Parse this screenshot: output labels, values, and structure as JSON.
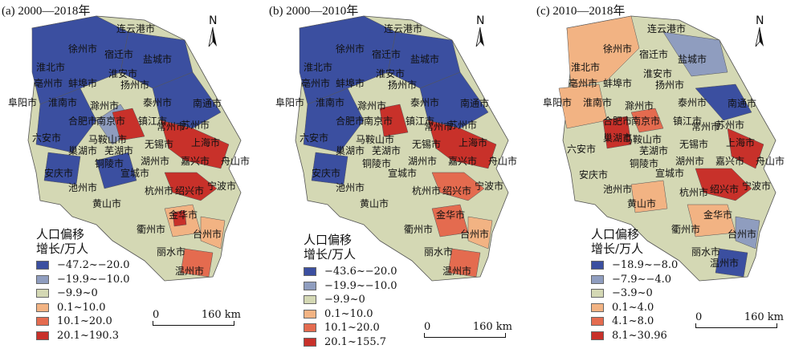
{
  "panels": [
    {
      "title": "(a) 2000—2018年",
      "legend_title_line1": "人口偏移",
      "legend_title_line2": "增长/万人",
      "legend": [
        {
          "label": "−47.2~−20.0",
          "color": "#3b4fa0"
        },
        {
          "label": "−19.9~−10.0",
          "color": "#8f9dbf"
        },
        {
          "label": "−9.9~0",
          "color": "#d4d8b4"
        },
        {
          "label": "0.1~10.0",
          "color": "#f2b383"
        },
        {
          "label": "10.1~20.0",
          "color": "#e46b4f"
        },
        {
          "label": "20.1~190.3",
          "color": "#c8312a"
        }
      ],
      "scale_start": "0",
      "scale_end": "160 km",
      "north": "N"
    },
    {
      "title": "(b) 2000—2010年",
      "legend_title_line1": "人口偏移",
      "legend_title_line2": "增长/万人",
      "legend": [
        {
          "label": "−43.6~−20.0",
          "color": "#3b4fa0"
        },
        {
          "label": "−19.9~−10.0",
          "color": "#8f9dbf"
        },
        {
          "label": "−9.9~0",
          "color": "#d4d8b4"
        },
        {
          "label": "0.1~10.0",
          "color": "#f2b383"
        },
        {
          "label": "10.1~20.0",
          "color": "#e46b4f"
        },
        {
          "label": "20.1~155.7",
          "color": "#c8312a"
        }
      ],
      "scale_start": "0",
      "scale_end": "160 km",
      "north": "N"
    },
    {
      "title": "(c) 2010—2018年",
      "legend_title_line1": "人口偏移",
      "legend_title_line2": "增长/万人",
      "legend": [
        {
          "label": "−18.9~−8.0",
          "color": "#3b4fa0"
        },
        {
          "label": "−7.9~−4.0",
          "color": "#8f9dbf"
        },
        {
          "label": "−3.9~0",
          "color": "#d4d8b4"
        },
        {
          "label": "0.1~4.0",
          "color": "#f2b383"
        },
        {
          "label": "4.1~8.0",
          "color": "#e46b4f"
        },
        {
          "label": "8.1~30.96",
          "color": "#c8312a"
        }
      ],
      "scale_start": "0",
      "scale_end": "160 km",
      "north": "N"
    }
  ],
  "cities": {
    "lianyungang_a": "连云港市",
    "lianyungang_b": "连云港市",
    "lianyungang_c": "连云港市",
    "xuzhou": "徐州市",
    "suqian": "宿迁市",
    "yancheng": "盐城市",
    "huaibei": "淮北市",
    "huaian": "淮安市",
    "bozhou": "亳州市",
    "bengbu": "蚌埠市",
    "yangzhou": "扬州市",
    "fuyang": "阜阳市",
    "huainan": "淮南市",
    "chuzhou": "滁州市",
    "taizhou_js": "泰州市",
    "nantong": "南通市",
    "hefei": "合肥市",
    "nanjing": "南京市",
    "zhenjiang": "镇江市",
    "changzhou": "常州市",
    "suzhou": "苏州市",
    "liuan": "六安市",
    "maanshan": "马鞍山市",
    "wuhu": "芜湖市",
    "wuxi": "无锡市",
    "shanghai": "上海市",
    "chaohu": "巢湖市",
    "tongling": "铜陵市",
    "huzhou": "湖州市",
    "jiaxing": "嘉兴市",
    "zhoushan": "舟山市",
    "anqing": "安庆市",
    "xuancheng": "宣城市",
    "chizhou": "池州市",
    "hangzhou": "杭州市",
    "shaoxing": "绍兴市",
    "ningbo": "宁波市",
    "huangshan": "黄山市",
    "jinhua": "金华市",
    "quzhou": "衢州市",
    "taizhou_zj": "台州市",
    "lishui": "丽水市",
    "wenzhou": "温州市"
  }
}
